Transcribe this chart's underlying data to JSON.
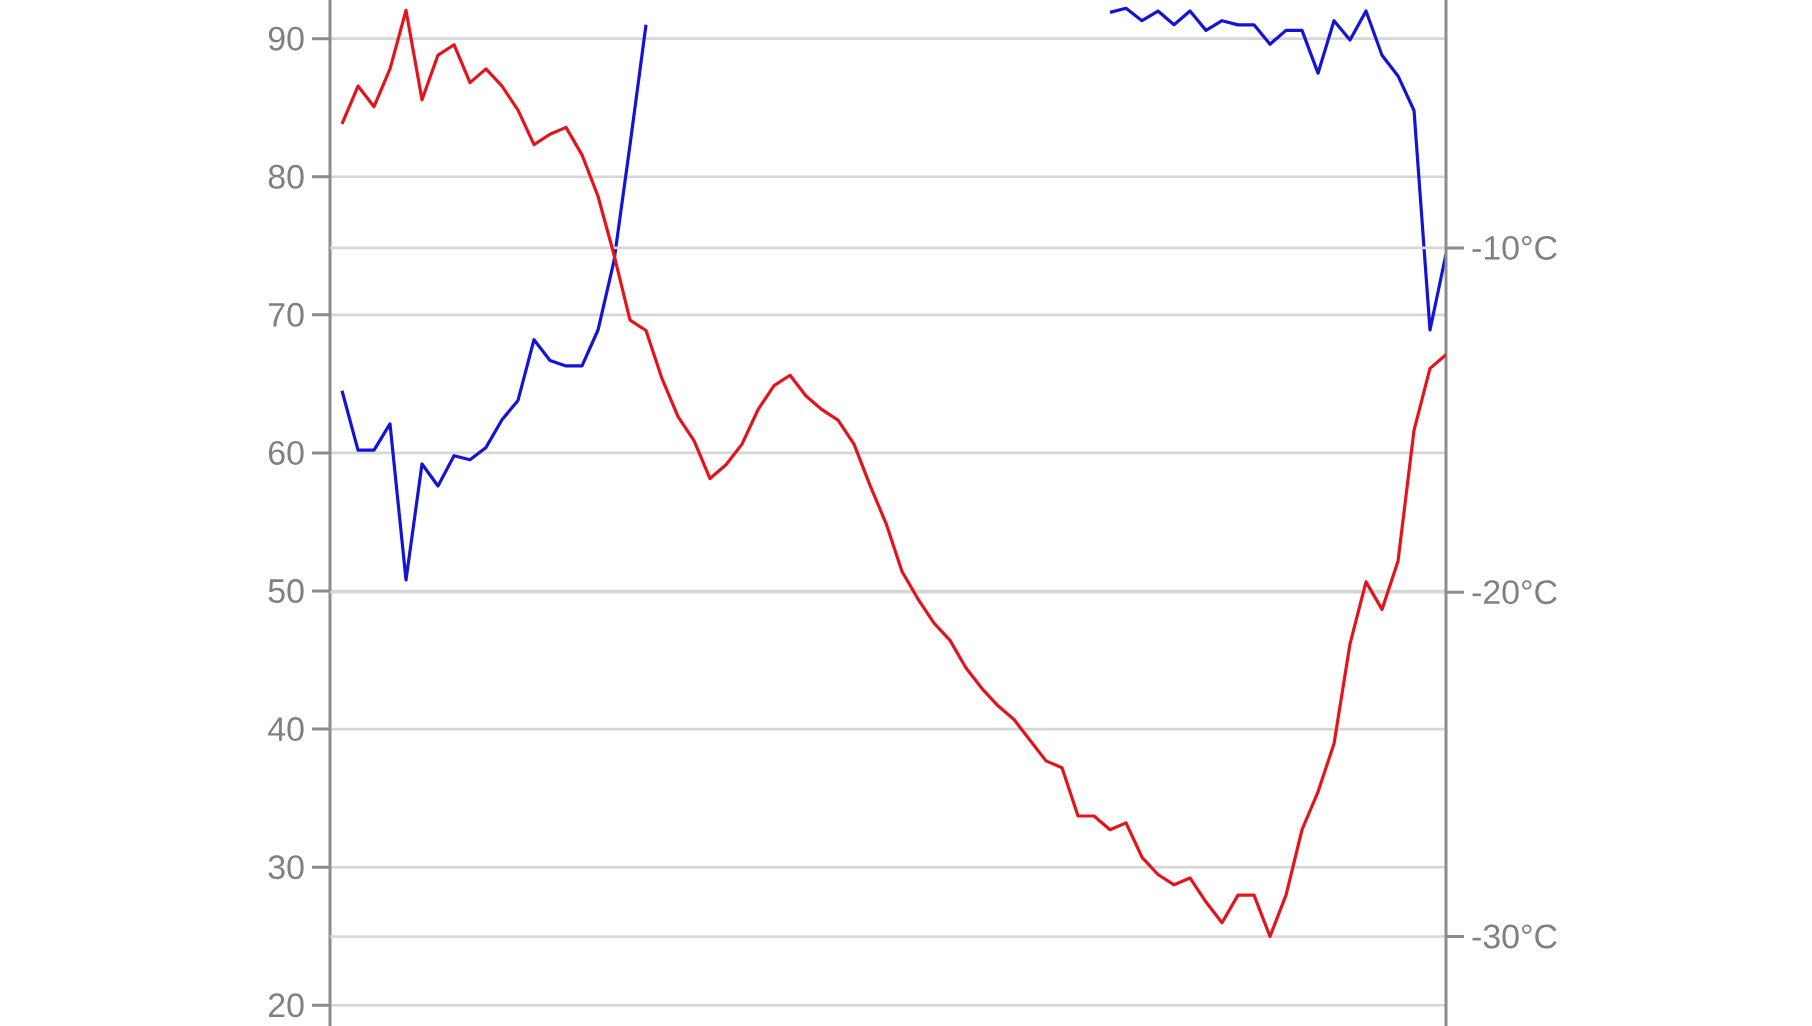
{
  "chart_data": {
    "type": "line",
    "categories": [
      null,
      null,
      null,
      null,
      null,
      null,
      null,
      null,
      null,
      null,
      null,
      null,
      null,
      null,
      null,
      null,
      null,
      null,
      null,
      null,
      null,
      null,
      null,
      null,
      null,
      null,
      null,
      null,
      null,
      null,
      null,
      null,
      null,
      null,
      null,
      null,
      null,
      null,
      null,
      null,
      null,
      null,
      null,
      null,
      null,
      null,
      null,
      null,
      null,
      null,
      null,
      null,
      null,
      null,
      null,
      null,
      null,
      null,
      null,
      null,
      null,
      null,
      null,
      null,
      null,
      null,
      null,
      null,
      null,
      null
    ],
    "series": [
      {
        "color": "#1414d6",
        "values": [
          64.5,
          60.2,
          60.2,
          62.1,
          50.8,
          59.2,
          57.6,
          59.8,
          59.5,
          60.4,
          62.4,
          63.8,
          68.2,
          66.7,
          66.3,
          66.3,
          68.9,
          73.9,
          82.3,
          91.0,
          null,
          null,
          null,
          null,
          null,
          null,
          null,
          null,
          null,
          null,
          null,
          null,
          null,
          null,
          null,
          null,
          null,
          null,
          null,
          null,
          null,
          null,
          null,
          null,
          null,
          null,
          null,
          null,
          91.9,
          92.2,
          91.3,
          92.0,
          91.0,
          92.0,
          90.6,
          91.3,
          91.0,
          91.0,
          89.6,
          90.6,
          90.6,
          87.5,
          91.3,
          89.9,
          92.0,
          88.8,
          87.3,
          84.8,
          68.9,
          74.4
        ]
      },
      {
        "color": "#e4141c",
        "axis": "y2",
        "values": [
          -6.4,
          -5.3,
          -5.9,
          -4.8,
          -3.1,
          -5.7,
          -4.4,
          -4.1,
          -5.2,
          -4.8,
          -5.3,
          -6.0,
          -7.0,
          -6.7,
          -6.5,
          -7.3,
          -8.5,
          -10.2,
          -12.1,
          -12.4,
          -13.8,
          -14.9,
          -15.6,
          -16.7,
          -16.3,
          -15.7,
          -14.7,
          -14.0,
          -13.7,
          -14.3,
          -14.7,
          -15.0,
          -15.7,
          -16.9,
          -18.0,
          -19.4,
          -20.2,
          -20.9,
          -21.4,
          -22.2,
          -22.8,
          -23.3,
          -23.7,
          -24.3,
          -24.9,
          -25.1,
          -26.5,
          -26.5,
          -26.9,
          -26.7,
          -27.7,
          -28.2,
          -28.5,
          -28.3,
          -29.0,
          -29.6,
          -28.8,
          -28.8,
          -30.0,
          -28.8,
          -26.9,
          -25.8,
          -24.4,
          -21.5,
          -19.7,
          -20.5,
          -19.1,
          -15.3,
          -13.5,
          -13.1
        ]
      }
    ],
    "ylim": [
      18.5,
      92.8
    ],
    "yticks": [
      20,
      30,
      40,
      50,
      60,
      70,
      80,
      90
    ],
    "y2lim": [
      -32.6,
      -2.8
    ],
    "y2ticks": [
      {
        "value": -10,
        "label": "-10°C"
      },
      {
        "value": -20,
        "label": "-20°C"
      },
      {
        "value": -30,
        "label": "-30°C"
      }
    ],
    "grid": true
  }
}
